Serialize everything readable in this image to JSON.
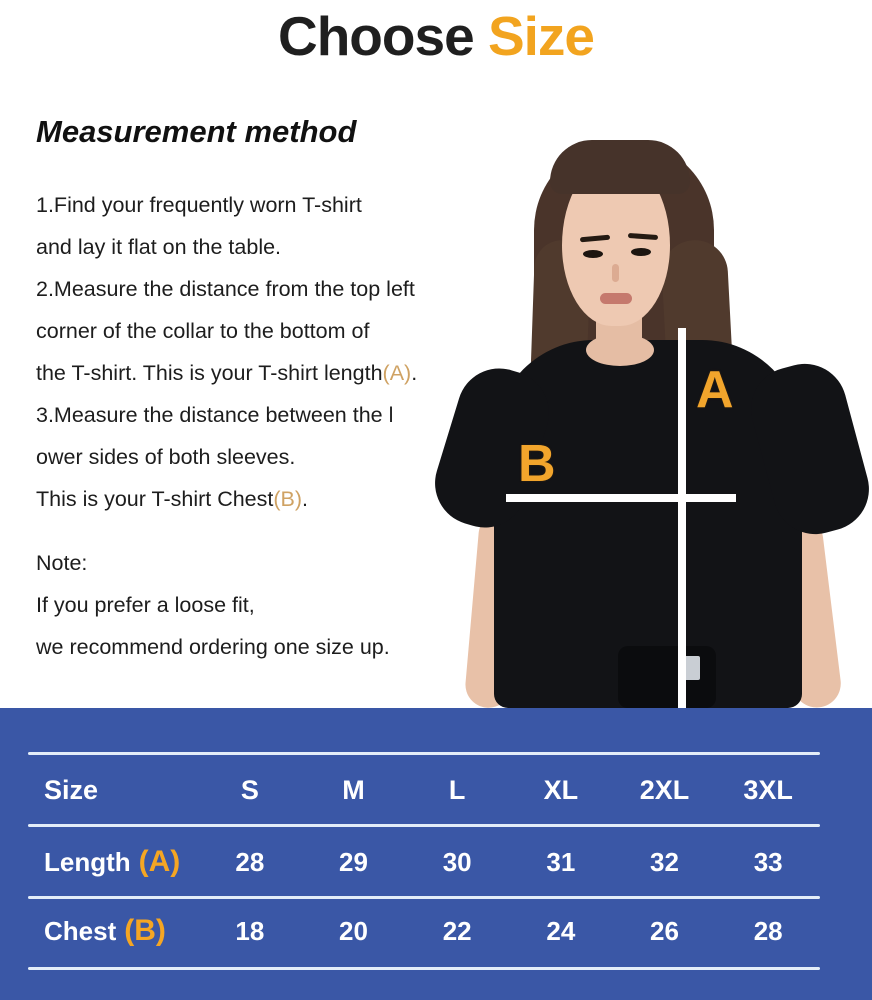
{
  "title": {
    "part1": "Choose",
    "part2": "Size"
  },
  "measurement": {
    "heading": "Measurement method",
    "steps": [
      {
        "pre": "1.Find your frequently worn T-shirt"
      },
      {
        "pre": "and lay it flat on the table."
      },
      {
        "pre": "2.Measure the distance from the top left"
      },
      {
        "pre": "corner of the collar to the bottom of"
      },
      {
        "pre": "the T-shirt. This is your T-shirt length",
        "mark": "(A)",
        "post": "."
      },
      {
        "pre": "3.Measure the distance between the l"
      },
      {
        "pre": "ower sides of both sleeves."
      },
      {
        "pre": "This is your T-shirt Chest",
        "mark": "(B)",
        "post": "."
      }
    ],
    "note": [
      "Note:",
      "If you prefer a loose fit,",
      "we recommend ordering one size up."
    ]
  },
  "diagram": {
    "label_a": "A",
    "label_b": "B"
  },
  "size_chart": {
    "corner_label": "Size",
    "columns": [
      "S",
      "M",
      "L",
      "XL",
      "2XL",
      "3XL"
    ],
    "rows": [
      {
        "label": "Length",
        "mark": "(A)",
        "values": [
          "28",
          "29",
          "30",
          "31",
          "32",
          "33"
        ]
      },
      {
        "label": "Chest",
        "mark": "(B)",
        "values": [
          "18",
          "20",
          "22",
          "24",
          "26",
          "28"
        ]
      }
    ]
  },
  "colors": {
    "accent_orange": "#F2A41F",
    "table_mark_orange": "#F5A623",
    "inline_mark_tan": "#CFA263",
    "table_blue": "#3A57A6"
  }
}
